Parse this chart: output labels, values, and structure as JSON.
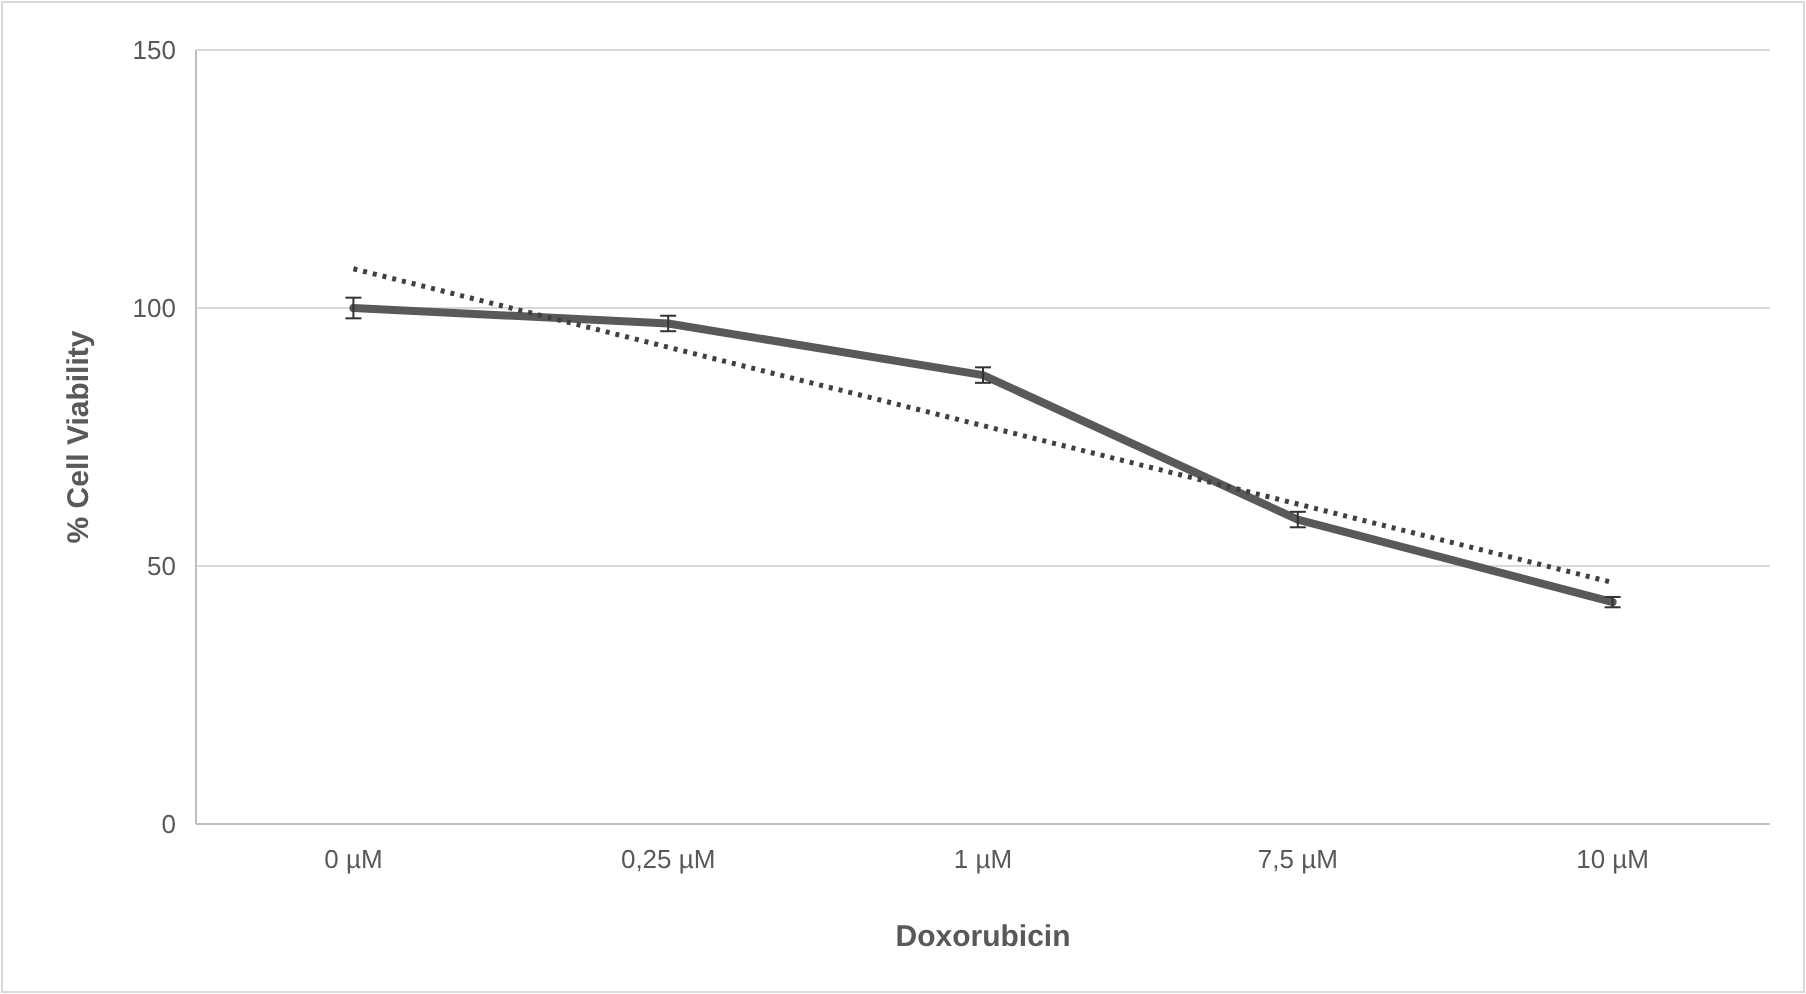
{
  "chart_data": {
    "type": "line",
    "xlabel": "Doxorubicin",
    "ylabel": "% Cell Viability",
    "categories": [
      "0 µM",
      "0,25 µM",
      "1 µM",
      "7,5 µM",
      "10 µM"
    ],
    "series": [
      {
        "color": "#595959",
        "values": [
          100,
          97,
          87,
          59,
          43
        ],
        "errors": [
          2,
          1.5,
          1.5,
          1.5,
          1
        ]
      },
      {
        "type": "line",
        "color": "#404040",
        "line_style": "dotted",
        "x": [
          "0 µM",
          "10 µM"
        ],
        "values": [
          107.6,
          46.8
        ]
      }
    ],
    "ylim": [
      0,
      150
    ],
    "yticks": [
      0,
      50,
      100,
      150
    ],
    "grid": "y",
    "marker": "none"
  }
}
